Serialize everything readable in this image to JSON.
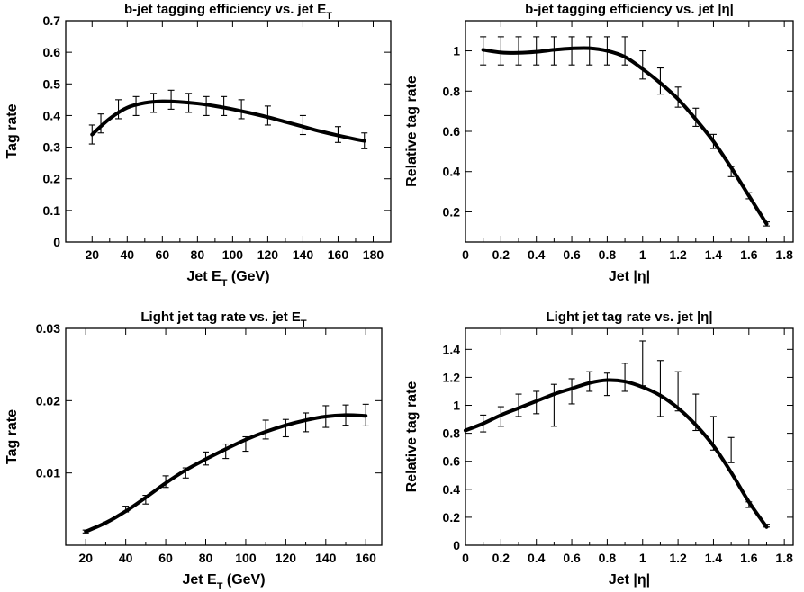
{
  "chart_data": [
    {
      "type": "line",
      "title": "b-jet tagging efficiency vs. jet E",
      "title_sub": "T",
      "xlabel": "Jet E",
      "xlabel_sub": "T",
      "xlabel_suffix": " (GeV)",
      "ylabel": "Tag rate",
      "xlim": [
        5,
        190
      ],
      "ylim": [
        0,
        0.7
      ],
      "xticks": [
        20,
        40,
        60,
        80,
        100,
        120,
        140,
        160,
        180
      ],
      "xtick_labels": [
        "20",
        "40",
        "60",
        "80",
        "100",
        "120",
        "140",
        "160",
        "180"
      ],
      "yticks": [
        0,
        0.1,
        0.2,
        0.3,
        0.4,
        0.5,
        0.6,
        0.7
      ],
      "ytick_labels": [
        "0",
        "0.1",
        "0.2",
        "0.3",
        "0.4",
        "0.5",
        "0.6",
        "0.7"
      ],
      "grid": false,
      "points": [
        {
          "x": 20,
          "y": 0.34,
          "err": 0.03
        },
        {
          "x": 25,
          "y": 0.375,
          "err": 0.03
        },
        {
          "x": 35,
          "y": 0.42,
          "err": 0.03
        },
        {
          "x": 45,
          "y": 0.43,
          "err": 0.03
        },
        {
          "x": 55,
          "y": 0.44,
          "err": 0.03
        },
        {
          "x": 65,
          "y": 0.45,
          "err": 0.03
        },
        {
          "x": 75,
          "y": 0.44,
          "err": 0.03
        },
        {
          "x": 85,
          "y": 0.43,
          "err": 0.03
        },
        {
          "x": 95,
          "y": 0.43,
          "err": 0.03
        },
        {
          "x": 105,
          "y": 0.42,
          "err": 0.03
        },
        {
          "x": 120,
          "y": 0.4,
          "err": 0.03
        },
        {
          "x": 140,
          "y": 0.37,
          "err": 0.03
        },
        {
          "x": 160,
          "y": 0.34,
          "err": 0.025
        },
        {
          "x": 175,
          "y": 0.32,
          "err": 0.025
        }
      ],
      "curve": {
        "x": [
          20,
          30,
          40,
          50,
          60,
          70,
          80,
          90,
          100,
          110,
          120,
          130,
          140,
          150,
          160,
          170,
          175
        ],
        "y": [
          0.34,
          0.39,
          0.425,
          0.44,
          0.445,
          0.443,
          0.438,
          0.43,
          0.42,
          0.408,
          0.395,
          0.38,
          0.365,
          0.35,
          0.337,
          0.325,
          0.32
        ]
      }
    },
    {
      "type": "line",
      "title": "b-jet tagging efficiency vs. jet |η|",
      "xlabel": "Jet |η|",
      "ylabel": "Relative tag rate",
      "xlim": [
        0,
        1.85
      ],
      "ylim": [
        0.05,
        1.15
      ],
      "xticks": [
        0,
        0.2,
        0.4,
        0.6,
        0.8,
        1,
        1.2,
        1.4,
        1.6,
        1.8
      ],
      "xtick_labels": [
        "0",
        "0.2",
        "0.4",
        "0.6",
        "0.8",
        "1",
        "1.2",
        "1.4",
        "1.6",
        "1.8"
      ],
      "yticks": [
        0.2,
        0.4,
        0.6,
        0.8,
        1
      ],
      "ytick_labels": [
        "0.2",
        "0.4",
        "0.6",
        "0.8",
        "1"
      ],
      "grid": false,
      "points": [
        {
          "x": 0.1,
          "y": 1.0,
          "err": 0.07
        },
        {
          "x": 0.2,
          "y": 1.0,
          "err": 0.07
        },
        {
          "x": 0.3,
          "y": 1.0,
          "err": 0.07
        },
        {
          "x": 0.4,
          "y": 1.0,
          "err": 0.07
        },
        {
          "x": 0.5,
          "y": 1.0,
          "err": 0.07
        },
        {
          "x": 0.6,
          "y": 1.0,
          "err": 0.07
        },
        {
          "x": 0.7,
          "y": 1.0,
          "err": 0.07
        },
        {
          "x": 0.8,
          "y": 1.0,
          "err": 0.07
        },
        {
          "x": 0.9,
          "y": 1.0,
          "err": 0.07
        },
        {
          "x": 1.0,
          "y": 0.93,
          "err": 0.07
        },
        {
          "x": 1.1,
          "y": 0.85,
          "err": 0.065
        },
        {
          "x": 1.2,
          "y": 0.77,
          "err": 0.05
        },
        {
          "x": 1.3,
          "y": 0.67,
          "err": 0.045
        },
        {
          "x": 1.4,
          "y": 0.55,
          "err": 0.035
        },
        {
          "x": 1.5,
          "y": 0.4,
          "err": 0.025
        },
        {
          "x": 1.6,
          "y": 0.28,
          "err": 0.015
        },
        {
          "x": 1.7,
          "y": 0.14,
          "err": 0.01
        }
      ],
      "curve": {
        "x": [
          0.1,
          0.2,
          0.3,
          0.4,
          0.5,
          0.6,
          0.7,
          0.8,
          0.9,
          1.0,
          1.1,
          1.2,
          1.3,
          1.4,
          1.5,
          1.6,
          1.7
        ],
        "y": [
          1.005,
          0.992,
          0.99,
          0.995,
          1.005,
          1.012,
          1.013,
          1.0,
          0.97,
          0.91,
          0.84,
          0.76,
          0.66,
          0.55,
          0.42,
          0.28,
          0.14
        ]
      }
    },
    {
      "type": "line",
      "title": "Light jet tag rate vs. jet E",
      "title_sub": "T",
      "xlabel": "Jet E",
      "xlabel_sub": "T",
      "xlabel_suffix": " (GeV)",
      "ylabel": "Tag rate",
      "xlim": [
        10,
        168
      ],
      "ylim": [
        0,
        0.03
      ],
      "xticks": [
        20,
        40,
        60,
        80,
        100,
        120,
        140,
        160
      ],
      "xtick_labels": [
        "20",
        "40",
        "60",
        "80",
        "100",
        "120",
        "140",
        "160"
      ],
      "yticks": [
        0.01,
        0.02,
        0.03
      ],
      "ytick_labels": [
        "0.01",
        "0.02",
        "0.03"
      ],
      "grid": false,
      "points": [
        {
          "x": 20,
          "y": 0.0019,
          "err": 0.0002
        },
        {
          "x": 30,
          "y": 0.003,
          "err": 0.0002
        },
        {
          "x": 40,
          "y": 0.005,
          "err": 0.0004
        },
        {
          "x": 50,
          "y": 0.0063,
          "err": 0.0006
        },
        {
          "x": 60,
          "y": 0.0088,
          "err": 0.0008
        },
        {
          "x": 70,
          "y": 0.01,
          "err": 0.0007
        },
        {
          "x": 80,
          "y": 0.012,
          "err": 0.0009
        },
        {
          "x": 90,
          "y": 0.013,
          "err": 0.001
        },
        {
          "x": 100,
          "y": 0.014,
          "err": 0.001
        },
        {
          "x": 110,
          "y": 0.016,
          "err": 0.0013
        },
        {
          "x": 120,
          "y": 0.0162,
          "err": 0.0012
        },
        {
          "x": 130,
          "y": 0.017,
          "err": 0.0013
        },
        {
          "x": 140,
          "y": 0.0178,
          "err": 0.0015
        },
        {
          "x": 150,
          "y": 0.018,
          "err": 0.0014
        },
        {
          "x": 160,
          "y": 0.018,
          "err": 0.0015
        }
      ],
      "curve": {
        "x": [
          20,
          30,
          40,
          50,
          60,
          70,
          80,
          90,
          100,
          110,
          120,
          130,
          140,
          150,
          160
        ],
        "y": [
          0.0019,
          0.0031,
          0.0047,
          0.0066,
          0.0086,
          0.0104,
          0.0119,
          0.0133,
          0.0146,
          0.0157,
          0.0166,
          0.0173,
          0.0178,
          0.018,
          0.0179
        ]
      }
    },
    {
      "type": "line",
      "title": "Light jet tag rate vs. jet |η|",
      "xlabel": "Jet |η|",
      "ylabel": "Relative tag rate",
      "xlim": [
        0,
        1.85
      ],
      "ylim": [
        0,
        1.55
      ],
      "xticks": [
        0,
        0.2,
        0.4,
        0.6,
        0.8,
        1,
        1.2,
        1.4,
        1.6,
        1.8
      ],
      "xtick_labels": [
        "0",
        "0.2",
        "0.4",
        "0.6",
        "0.8",
        "1",
        "1.2",
        "1.4",
        "1.6",
        "1.8"
      ],
      "yticks": [
        0,
        0.2,
        0.4,
        0.6,
        0.8,
        1,
        1.2,
        1.4
      ],
      "ytick_labels": [
        "0",
        "0.2",
        "0.4",
        "0.6",
        "0.8",
        "1",
        "1.2",
        "1.4"
      ],
      "grid": false,
      "points": [
        {
          "x": 0.1,
          "y": 0.87,
          "err": 0.06
        },
        {
          "x": 0.2,
          "y": 0.92,
          "err": 0.07
        },
        {
          "x": 0.3,
          "y": 1.0,
          "err": 0.08
        },
        {
          "x": 0.4,
          "y": 1.02,
          "err": 0.08
        },
        {
          "x": 0.5,
          "y": 1.0,
          "err": 0.15
        },
        {
          "x": 0.6,
          "y": 1.1,
          "err": 0.09
        },
        {
          "x": 0.7,
          "y": 1.17,
          "err": 0.07
        },
        {
          "x": 0.8,
          "y": 1.15,
          "err": 0.08
        },
        {
          "x": 0.9,
          "y": 1.2,
          "err": 0.1
        },
        {
          "x": 1.0,
          "y": 1.3,
          "err": 0.16
        },
        {
          "x": 1.1,
          "y": 1.12,
          "err": 0.2
        },
        {
          "x": 1.2,
          "y": 1.1,
          "err": 0.14
        },
        {
          "x": 1.3,
          "y": 0.95,
          "err": 0.13
        },
        {
          "x": 1.4,
          "y": 0.8,
          "err": 0.12
        },
        {
          "x": 1.5,
          "y": 0.68,
          "err": 0.09
        },
        {
          "x": 1.6,
          "y": 0.29,
          "err": 0.02
        },
        {
          "x": 1.7,
          "y": 0.14,
          "err": 0.01
        }
      ],
      "curve": {
        "x": [
          0,
          0.1,
          0.2,
          0.3,
          0.4,
          0.5,
          0.6,
          0.7,
          0.8,
          0.9,
          1.0,
          1.1,
          1.2,
          1.3,
          1.4,
          1.5,
          1.6,
          1.7
        ],
        "y": [
          0.82,
          0.87,
          0.93,
          0.98,
          1.03,
          1.08,
          1.12,
          1.16,
          1.18,
          1.17,
          1.13,
          1.07,
          0.98,
          0.86,
          0.71,
          0.52,
          0.31,
          0.13
        ]
      }
    }
  ]
}
